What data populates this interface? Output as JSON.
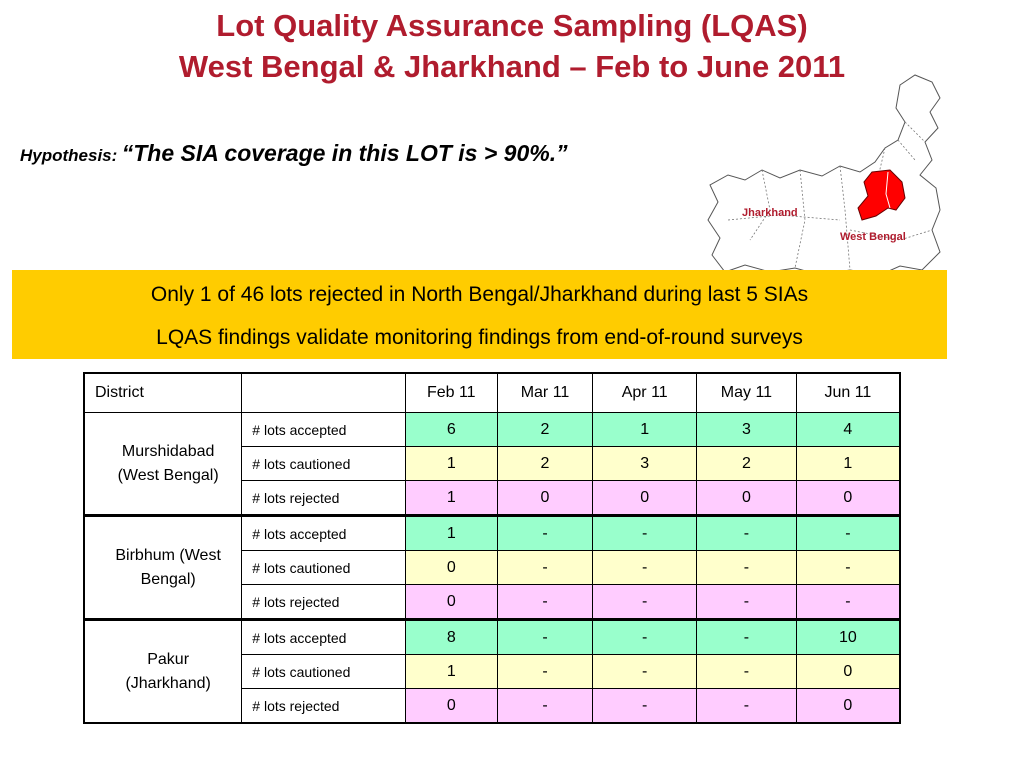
{
  "title": {
    "line1": "Lot Quality Assurance Sampling (LQAS)",
    "line2": "West Bengal & Jharkhand – Feb to June 2011"
  },
  "hypothesis": {
    "label": "Hypothesis:",
    "statement": "“The SIA coverage in this LOT is > 90%.”"
  },
  "map": {
    "label_jharkhand": "Jharkhand",
    "label_west_bengal": "West Bengal",
    "highlight_color": "#ff0000"
  },
  "banner": {
    "line1": "Only 1 of 46 lots rejected in North Bengal/Jharkhand during last 5 SIAs",
    "line2": "LQAS findings validate monitoring findings from end-of-round surveys",
    "color": "#ffcc00"
  },
  "table": {
    "header": [
      "District",
      "",
      "Feb 11",
      "Mar 11",
      "Apr 11",
      "May 11",
      "Jun 11"
    ],
    "colors": {
      "accepted": "#99ffcc",
      "cautioned": "#ffffcc",
      "rejected": "#ffccff"
    },
    "groups": [
      {
        "district_lines": [
          "Murshidabad",
          "(West Bengal)"
        ],
        "rows": [
          {
            "metric": "# lots accepted",
            "values": [
              "6",
              "2",
              "1",
              "3",
              "4"
            ]
          },
          {
            "metric": "# lots cautioned",
            "values": [
              "1",
              "2",
              "3",
              "2",
              "1"
            ]
          },
          {
            "metric": "# lots rejected",
            "values": [
              "1",
              "0",
              "0",
              "0",
              "0"
            ]
          }
        ]
      },
      {
        "district_lines": [
          "Birbhum (West",
          "Bengal)"
        ],
        "rows": [
          {
            "metric": "# lots accepted",
            "values": [
              "1",
              "-",
              "-",
              "-",
              "-"
            ]
          },
          {
            "metric": "# lots cautioned",
            "values": [
              "0",
              "-",
              "-",
              "-",
              "-"
            ]
          },
          {
            "metric": "# lots rejected",
            "values": [
              "0",
              "-",
              "-",
              "-",
              "-"
            ]
          }
        ]
      },
      {
        "district_lines": [
          "Pakur",
          "(Jharkhand)"
        ],
        "rows": [
          {
            "metric": "# lots accepted",
            "values": [
              "8",
              "-",
              "-",
              "-",
              "10"
            ]
          },
          {
            "metric": "# lots cautioned",
            "values": [
              "1",
              "-",
              "-",
              "-",
              "0"
            ]
          },
          {
            "metric": "# lots rejected",
            "values": [
              "0",
              "-",
              "-",
              "-",
              "0"
            ]
          }
        ]
      }
    ]
  }
}
